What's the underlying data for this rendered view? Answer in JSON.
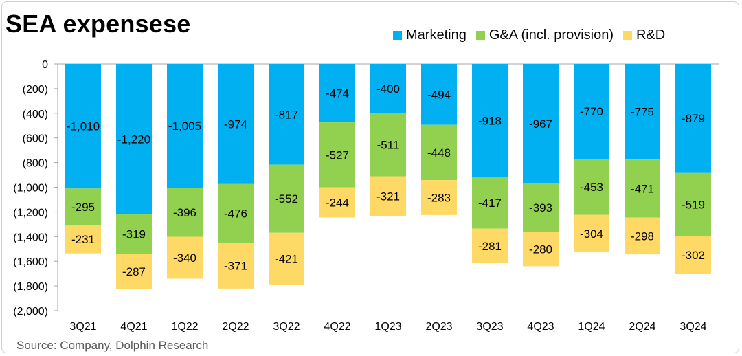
{
  "title": "SEA expensese",
  "source": "Source: Company, Dolphin Research",
  "colors": {
    "Marketing": "#00B0F0",
    "G&A (incl. provision)": "#92D050",
    "R&D": "#FFD966"
  },
  "chart_data": {
    "type": "bar",
    "stacked": true,
    "categories": [
      "3Q21",
      "4Q21",
      "1Q22",
      "2Q22",
      "3Q22",
      "4Q22",
      "1Q23",
      "2Q23",
      "3Q23",
      "4Q23",
      "1Q24",
      "2Q24",
      "3Q24"
    ],
    "series": [
      {
        "name": "Marketing",
        "values": [
          -1010,
          -1220,
          -1005,
          -974,
          -817,
          -474,
          -400,
          -494,
          -918,
          -967,
          -770,
          -775,
          -879
        ]
      },
      {
        "name": "G&A (incl. provision)",
        "values": [
          -295,
          -319,
          -396,
          -476,
          -552,
          -527,
          -511,
          -448,
          -417,
          -393,
          -453,
          -471,
          -519
        ]
      },
      {
        "name": "R&D",
        "values": [
          -231,
          -287,
          -340,
          -371,
          -421,
          -244,
          -321,
          -283,
          -281,
          -280,
          -304,
          -298,
          -302
        ]
      }
    ],
    "data_labels": [
      [
        "-1,010",
        "-1,220",
        "-1,005",
        "-974",
        "-817",
        "-474",
        "-400",
        "-494",
        "-918",
        "-967",
        "-770",
        "-775",
        "-879"
      ],
      [
        "-295",
        "-319",
        "-396",
        "-476",
        "-552",
        "-527",
        "-511",
        "-448",
        "-417",
        "-393",
        "-453",
        "-471",
        "-519"
      ],
      [
        "-231",
        "-287",
        "-340",
        "-371",
        "-421",
        "-244",
        "-321",
        "-283",
        "-281",
        "-280",
        "-304",
        "-298",
        "-302"
      ]
    ],
    "y_ticks": [
      0,
      -200,
      -400,
      -600,
      -800,
      -1000,
      -1200,
      -1400,
      -1600,
      -1800,
      -2000
    ],
    "y_tick_labels": [
      "0",
      "(200)",
      "(400)",
      "(600)",
      "(800)",
      "(1,000)",
      "(1,200)",
      "(1,400)",
      "(1,600)",
      "(1,800)",
      "(2,000)"
    ],
    "ylim": [
      -2000,
      0
    ],
    "legend_position": "top-right",
    "grid": false
  }
}
